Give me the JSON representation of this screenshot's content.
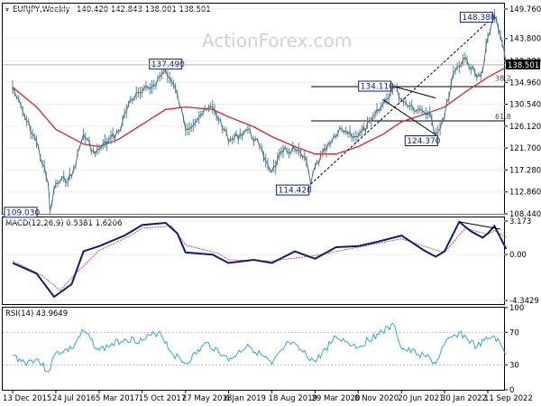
{
  "watermark": "ActionForex.com",
  "chart_data": [
    {
      "type": "line",
      "header": {
        "symbol": "EURJPY,Weekly",
        "ohlc": "140.420 142.843 138.001 138.501"
      },
      "ylim": [
        108.44,
        149.76
      ],
      "y_ticks": [
        {
          "value": 149.76,
          "label": "149.760"
        },
        {
          "value": 143.8,
          "label": "143.800"
        },
        {
          "value": 139.28,
          "label": "139.280"
        },
        {
          "value": 134.96,
          "label": "134.960"
        },
        {
          "value": 130.54,
          "label": "130.540"
        },
        {
          "value": 126.12,
          "label": "126.120"
        },
        {
          "value": 121.7,
          "label": "121.700"
        },
        {
          "value": 117.28,
          "label": "117.280"
        },
        {
          "value": 112.86,
          "label": "112.860"
        },
        {
          "value": 108.44,
          "label": "108.440"
        }
      ],
      "last_price": {
        "value": 138.501,
        "label": "138.501"
      },
      "x_ticks": [
        "13 Dec 2015",
        "24 Jul 2016",
        "5 Mar 2017",
        "15 Oct 2017",
        "27 May 2018",
        "6 Jan 2019",
        "18 Aug 2019",
        "29 Mar 2020",
        "8 Nov 2020",
        "20 Jun 2021",
        "30 Jan 2022",
        "11 Sep 2022"
      ],
      "price_series": [
        {
          "x": "13 Dec 2015",
          "y": 134.0
        },
        {
          "x": "2016-02",
          "y": 128.0
        },
        {
          "x": "2016-04",
          "y": 123.0
        },
        {
          "x": "2016-06",
          "y": 114.5
        },
        {
          "x": "2016-06-24",
          "y": 109.03
        },
        {
          "x": "24 Jul 2016",
          "y": 114.5
        },
        {
          "x": "2016-10",
          "y": 116.0
        },
        {
          "x": "2016-12",
          "y": 124.5
        },
        {
          "x": "2017-02",
          "y": 120.5
        },
        {
          "x": "5 Mar 2017",
          "y": 121.5
        },
        {
          "x": "2017-06",
          "y": 125.0
        },
        {
          "x": "2017-08",
          "y": 131.5
        },
        {
          "x": "15 Oct 2017",
          "y": 133.0
        },
        {
          "x": "2017-12",
          "y": 134.5
        },
        {
          "x": "2018-02",
          "y": 137.49
        },
        {
          "x": "2018-04",
          "y": 132.5
        },
        {
          "x": "27 May 2018",
          "y": 125.5
        },
        {
          "x": "2018-08",
          "y": 128.5
        },
        {
          "x": "2018-10",
          "y": 130.0
        },
        {
          "x": "2018-12",
          "y": 125.5
        },
        {
          "x": "6 Jan 2019",
          "y": 123.0
        },
        {
          "x": "2019-04",
          "y": 125.5
        },
        {
          "x": "2019-06",
          "y": 122.0
        },
        {
          "x": "18 Aug 2019",
          "y": 117.0
        },
        {
          "x": "2019-10",
          "y": 121.0
        },
        {
          "x": "2019-12",
          "y": 121.5
        },
        {
          "x": "2020-02",
          "y": 119.0
        },
        {
          "x": "2020-03-06",
          "y": 114.42
        },
        {
          "x": "29 Mar 2020",
          "y": 118.0
        },
        {
          "x": "2020-06",
          "y": 122.5
        },
        {
          "x": "2020-08",
          "y": 125.5
        },
        {
          "x": "8 Nov 2020",
          "y": 124.0
        },
        {
          "x": "2021-01",
          "y": 127.0
        },
        {
          "x": "2021-03",
          "y": 130.5
        },
        {
          "x": "2021-05",
          "y": 134.11
        },
        {
          "x": "20 Jun 2021",
          "y": 131.5
        },
        {
          "x": "2021-09",
          "y": 129.5
        },
        {
          "x": "2021-11",
          "y": 129.0
        },
        {
          "x": "2021-12",
          "y": 124.37
        },
        {
          "x": "30 Jan 2022",
          "y": 128.0
        },
        {
          "x": "2022-03",
          "y": 137.0
        },
        {
          "x": "2022-05",
          "y": 140.0
        },
        {
          "x": "2022-07",
          "y": 136.0
        },
        {
          "x": "2022-08",
          "y": 137.5
        },
        {
          "x": "11 Sep 2022",
          "y": 144.0
        },
        {
          "x": "2022-10",
          "y": 148.38
        },
        {
          "x": "2022-11",
          "y": 144.5
        },
        {
          "x": "2022-12",
          "y": 138.501
        }
      ],
      "moving_average": [
        {
          "x": "13 Dec 2015",
          "y": 134.0
        },
        {
          "x": "2016-04",
          "y": 130.0
        },
        {
          "x": "24 Jul 2016",
          "y": 125.5
        },
        {
          "x": "2016-12",
          "y": 122.5
        },
        {
          "x": "5 Mar 2017",
          "y": 122.0
        },
        {
          "x": "2017-06",
          "y": 123.5
        },
        {
          "x": "15 Oct 2017",
          "y": 126.5
        },
        {
          "x": "2018-02",
          "y": 129.5
        },
        {
          "x": "27 May 2018",
          "y": 130.0
        },
        {
          "x": "2018-10",
          "y": 129.5
        },
        {
          "x": "6 Jan 2019",
          "y": 128.0
        },
        {
          "x": "2019-05",
          "y": 126.0
        },
        {
          "x": "18 Aug 2019",
          "y": 124.0
        },
        {
          "x": "2019-12",
          "y": 122.0
        },
        {
          "x": "29 Mar 2020",
          "y": 120.5
        },
        {
          "x": "2020-07",
          "y": 120.5
        },
        {
          "x": "8 Nov 2020",
          "y": 122.0
        },
        {
          "x": "2021-03",
          "y": 124.5
        },
        {
          "x": "20 Jun 2021",
          "y": 127.0
        },
        {
          "x": "2021-10",
          "y": 128.5
        },
        {
          "x": "30 Jan 2022",
          "y": 130.0
        },
        {
          "x": "2022-05",
          "y": 133.0
        },
        {
          "x": "11 Sep 2022",
          "y": 136.0
        },
        {
          "x": "2022-12",
          "y": 138.0
        }
      ],
      "callouts": [
        {
          "label": "109.030",
          "x": "2016-06-24",
          "y": 109.03
        },
        {
          "label": "137.490",
          "x": "2018-02",
          "y": 137.49
        },
        {
          "label": "114.420",
          "x": "2020-03-06",
          "y": 114.42
        },
        {
          "label": "134.110",
          "x": "2021-05",
          "y": 134.11
        },
        {
          "label": "124.370",
          "x": "2021-12",
          "y": 124.37
        },
        {
          "label": "148.380",
          "x": "2022-10",
          "y": 148.38
        }
      ],
      "fib_levels": [
        {
          "label": "38.2",
          "y": 134.96
        },
        {
          "label": "61.8",
          "y": 127.2
        }
      ],
      "levels": [
        {
          "y": 134.11
        },
        {
          "y": 127.2
        }
      ],
      "trendlines": [
        {
          "from": {
            "x": "2020-03-06",
            "y": 114.42
          },
          "to": {
            "x": "2022-10",
            "y": 148.38
          }
        },
        {
          "from": {
            "x": "2021-05",
            "y": 134.11
          },
          "to": {
            "x": "2021-12",
            "y": 131.8
          }
        },
        {
          "from": {
            "x": "2021-03",
            "y": 131.5
          },
          "to": {
            "x": "2021-12",
            "y": 124.37
          }
        }
      ]
    },
    {
      "type": "line",
      "header": {
        "label": "MACD(12,26,9) 0.5381 1.6206"
      },
      "ylim": [
        -4.3429,
        3.173
      ],
      "y_ticks": [
        {
          "value": 3.173,
          "label": "3.173"
        },
        {
          "value": 0.0,
          "label": "0.00"
        },
        {
          "value": -4.3429,
          "label": "-4.3429"
        }
      ],
      "macd_line": [
        {
          "x": "13 Dec 2015",
          "y": -0.8
        },
        {
          "x": "2016-04",
          "y": -1.8
        },
        {
          "x": "2016-07",
          "y": -4.0
        },
        {
          "x": "2016-10",
          "y": -2.8
        },
        {
          "x": "2016-12",
          "y": 0.3
        },
        {
          "x": "5 Mar 2017",
          "y": 0.8
        },
        {
          "x": "2017-07",
          "y": 1.8
        },
        {
          "x": "15 Oct 2017",
          "y": 2.8
        },
        {
          "x": "2018-02",
          "y": 3.0
        },
        {
          "x": "2018-04",
          "y": 2.0
        },
        {
          "x": "27 May 2018",
          "y": 0.2
        },
        {
          "x": "2018-10",
          "y": 0.0
        },
        {
          "x": "6 Jan 2019",
          "y": -0.8
        },
        {
          "x": "2019-05",
          "y": -0.5
        },
        {
          "x": "18 Aug 2019",
          "y": -0.8
        },
        {
          "x": "2019-12",
          "y": 0.3
        },
        {
          "x": "29 Mar 2020",
          "y": -0.4
        },
        {
          "x": "2020-07",
          "y": 0.7
        },
        {
          "x": "8 Nov 2020",
          "y": 0.8
        },
        {
          "x": "2021-02",
          "y": 1.2
        },
        {
          "x": "20 Jun 2021",
          "y": 1.8
        },
        {
          "x": "2021-10",
          "y": 0.4
        },
        {
          "x": "2021-12",
          "y": -0.2
        },
        {
          "x": "30 Jan 2022",
          "y": 0.3
        },
        {
          "x": "2022-04",
          "y": 3.1
        },
        {
          "x": "2022-06",
          "y": 2.2
        },
        {
          "x": "2022-08",
          "y": 1.6
        },
        {
          "x": "11 Sep 2022",
          "y": 2.0
        },
        {
          "x": "2022-10",
          "y": 2.7
        },
        {
          "x": "2022-12",
          "y": 0.5381
        }
      ],
      "signal_line": [
        {
          "x": "13 Dec 2015",
          "y": -0.6
        },
        {
          "x": "2016-05",
          "y": -2.0
        },
        {
          "x": "2016-08",
          "y": -3.4
        },
        {
          "x": "2016-11",
          "y": -1.6
        },
        {
          "x": "5 Mar 2017",
          "y": 0.4
        },
        {
          "x": "2017-08",
          "y": 1.8
        },
        {
          "x": "15 Oct 2017",
          "y": 2.5
        },
        {
          "x": "2018-03",
          "y": 2.7
        },
        {
          "x": "27 May 2018",
          "y": 0.9
        },
        {
          "x": "2018-11",
          "y": 0.1
        },
        {
          "x": "6 Jan 2019",
          "y": -0.5
        },
        {
          "x": "18 Aug 2019",
          "y": -0.6
        },
        {
          "x": "29 Mar 2020",
          "y": -0.1
        },
        {
          "x": "8 Nov 2020",
          "y": 0.7
        },
        {
          "x": "20 Jun 2021",
          "y": 1.5
        },
        {
          "x": "2021-11",
          "y": 0.6
        },
        {
          "x": "30 Jan 2022",
          "y": 0.2
        },
        {
          "x": "2022-05",
          "y": 2.5
        },
        {
          "x": "11 Sep 2022",
          "y": 1.9
        },
        {
          "x": "2022-10",
          "y": 2.3
        },
        {
          "x": "2022-12",
          "y": 1.6206
        }
      ],
      "trendline": {
        "from": {
          "x": "2022-04",
          "y": 3.1
        },
        "to": {
          "x": "2022-11",
          "y": 2.4
        }
      }
    },
    {
      "type": "line",
      "header": {
        "label": "RSI(14) 43.9649"
      },
      "ylim": [
        0,
        100
      ],
      "y_ticks": [
        {
          "value": 100,
          "label": "100"
        },
        {
          "value": 70,
          "label": "70"
        },
        {
          "value": 30,
          "label": "30"
        },
        {
          "value": 0,
          "label": "0"
        }
      ],
      "rsi_line": [
        {
          "x": "13 Dec 2015",
          "y": 42
        },
        {
          "x": "2016-02",
          "y": 33
        },
        {
          "x": "2016-04",
          "y": 38
        },
        {
          "x": "2016-06",
          "y": 22
        },
        {
          "x": "24 Jul 2016",
          "y": 45
        },
        {
          "x": "2016-10",
          "y": 50
        },
        {
          "x": "2016-12",
          "y": 72
        },
        {
          "x": "5 Mar 2017",
          "y": 48
        },
        {
          "x": "2017-07",
          "y": 62
        },
        {
          "x": "15 Oct 2017",
          "y": 60
        },
        {
          "x": "2018-01",
          "y": 71
        },
        {
          "x": "2018-03",
          "y": 45
        },
        {
          "x": "27 May 2018",
          "y": 32
        },
        {
          "x": "2018-09",
          "y": 57
        },
        {
          "x": "2018-12",
          "y": 42
        },
        {
          "x": "6 Jan 2019",
          "y": 35
        },
        {
          "x": "2019-04",
          "y": 55
        },
        {
          "x": "18 Aug 2019",
          "y": 31
        },
        {
          "x": "2019-11",
          "y": 58
        },
        {
          "x": "29 Mar 2020",
          "y": 34
        },
        {
          "x": "2020-07",
          "y": 65
        },
        {
          "x": "8 Nov 2020",
          "y": 52
        },
        {
          "x": "2021-02",
          "y": 68
        },
        {
          "x": "2021-05",
          "y": 78
        },
        {
          "x": "20 Jun 2021",
          "y": 50
        },
        {
          "x": "2021-10",
          "y": 42
        },
        {
          "x": "2021-12",
          "y": 32
        },
        {
          "x": "30 Jan 2022",
          "y": 55
        },
        {
          "x": "2022-04",
          "y": 70
        },
        {
          "x": "2022-07",
          "y": 52
        },
        {
          "x": "11 Sep 2022",
          "y": 62
        },
        {
          "x": "2022-10",
          "y": 65
        },
        {
          "x": "2022-12",
          "y": 43.9649
        }
      ]
    }
  ]
}
